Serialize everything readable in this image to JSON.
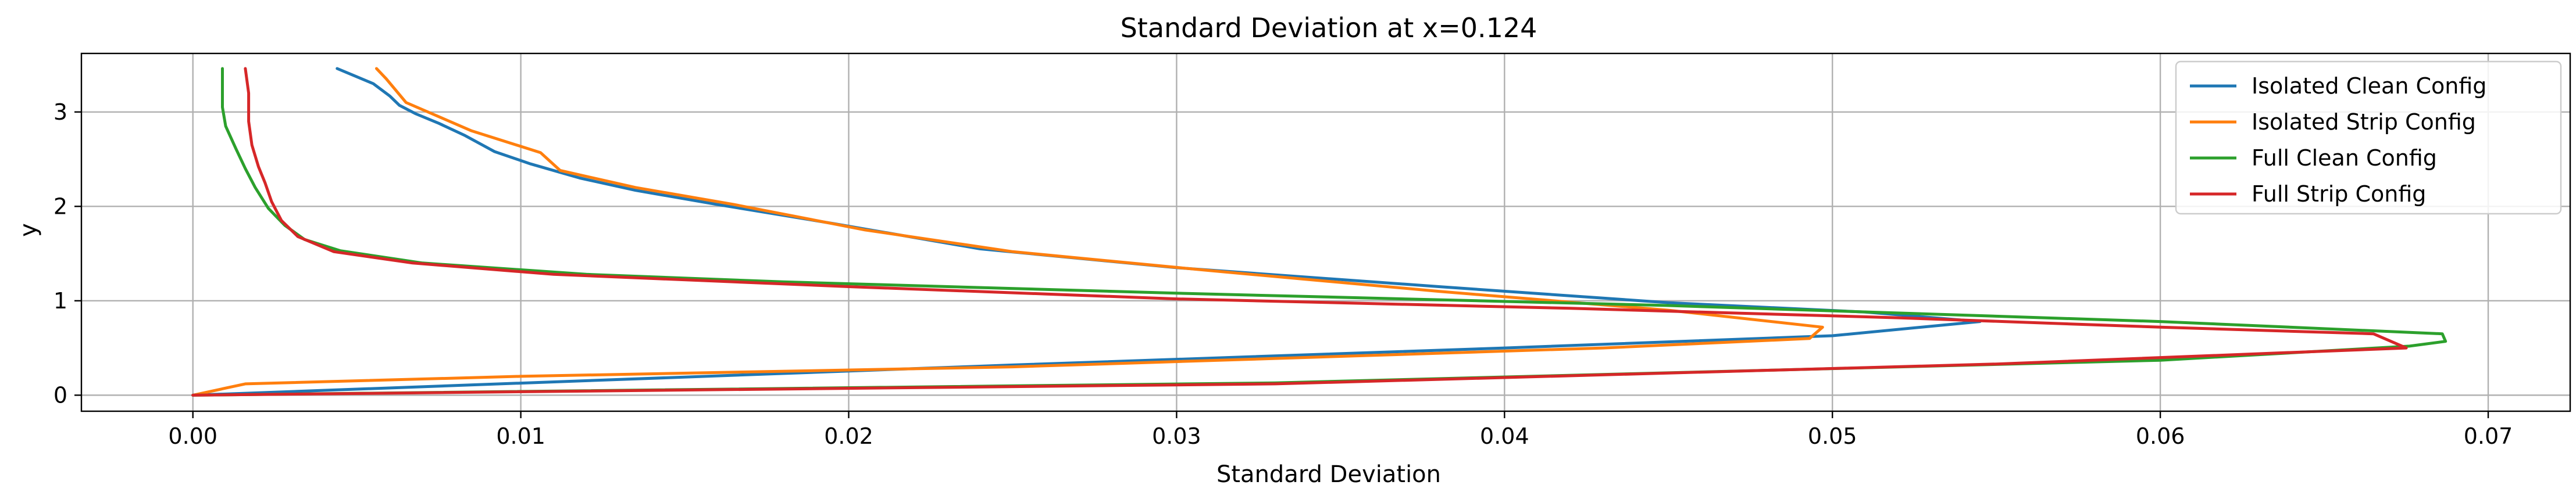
{
  "chart_data": {
    "type": "line",
    "title": "Standard Deviation at x=0.124",
    "xlabel": "Standard Deviation",
    "ylabel": "y",
    "xlim": [
      -0.0034,
      0.0725
    ],
    "ylim": [
      -0.17,
      3.62
    ],
    "xticks": [
      0.0,
      0.01,
      0.02,
      0.03,
      0.04,
      0.05,
      0.06,
      0.07
    ],
    "xtick_labels": [
      "0.00",
      "0.01",
      "0.02",
      "0.03",
      "0.04",
      "0.05",
      "0.06",
      "0.07"
    ],
    "yticks": [
      0,
      1,
      2,
      3
    ],
    "ytick_labels": [
      "0",
      "1",
      "2",
      "3"
    ],
    "grid": true,
    "legend_position": "top-right",
    "series": [
      {
        "name": "Isolated Clean Config",
        "color": "#1f77b4",
        "points": [
          [
            0.0,
            0.0
          ],
          [
            0.025,
            0.32
          ],
          [
            0.04,
            0.5
          ],
          [
            0.05,
            0.63
          ],
          [
            0.0545,
            0.78
          ],
          [
            0.051,
            0.88
          ],
          [
            0.045,
            0.98
          ],
          [
            0.038,
            1.15
          ],
          [
            0.03,
            1.35
          ],
          [
            0.024,
            1.55
          ],
          [
            0.0195,
            1.82
          ],
          [
            0.016,
            2.02
          ],
          [
            0.0135,
            2.17
          ],
          [
            0.0118,
            2.3
          ],
          [
            0.0103,
            2.45
          ],
          [
            0.0092,
            2.58
          ],
          [
            0.0083,
            2.75
          ],
          [
            0.0075,
            2.88
          ],
          [
            0.0068,
            2.98
          ],
          [
            0.0063,
            3.07
          ],
          [
            0.006,
            3.17
          ],
          [
            0.0055,
            3.3
          ],
          [
            0.0044,
            3.46
          ]
        ]
      },
      {
        "name": "Isolated Strip Config",
        "color": "#ff7f0e",
        "points": [
          [
            0.0,
            0.0
          ],
          [
            0.0016,
            0.12
          ],
          [
            0.01,
            0.2
          ],
          [
            0.025,
            0.3
          ],
          [
            0.043,
            0.5
          ],
          [
            0.0493,
            0.6
          ],
          [
            0.0497,
            0.72
          ],
          [
            0.045,
            0.9
          ],
          [
            0.038,
            1.1
          ],
          [
            0.031,
            1.32
          ],
          [
            0.025,
            1.52
          ],
          [
            0.0205,
            1.75
          ],
          [
            0.0165,
            2.02
          ],
          [
            0.0135,
            2.2
          ],
          [
            0.0112,
            2.38
          ],
          [
            0.0106,
            2.57
          ],
          [
            0.0085,
            2.8
          ],
          [
            0.0073,
            2.98
          ],
          [
            0.0065,
            3.1
          ],
          [
            0.0059,
            3.35
          ],
          [
            0.0056,
            3.46
          ]
        ]
      },
      {
        "name": "Full Clean Config",
        "color": "#2ca02c",
        "points": [
          [
            0.0,
            0.0
          ],
          [
            0.033,
            0.13
          ],
          [
            0.06,
            0.37
          ],
          [
            0.0676,
            0.52
          ],
          [
            0.0687,
            0.57
          ],
          [
            0.0686,
            0.65
          ],
          [
            0.06,
            0.78
          ],
          [
            0.045,
            0.95
          ],
          [
            0.03,
            1.08
          ],
          [
            0.018,
            1.2
          ],
          [
            0.012,
            1.28
          ],
          [
            0.007,
            1.4
          ],
          [
            0.0045,
            1.53
          ],
          [
            0.0034,
            1.65
          ],
          [
            0.0028,
            1.8
          ],
          [
            0.0023,
            1.98
          ],
          [
            0.0019,
            2.2
          ],
          [
            0.0016,
            2.4
          ],
          [
            0.0013,
            2.62
          ],
          [
            0.001,
            2.85
          ],
          [
            0.0009,
            3.05
          ],
          [
            0.0009,
            3.46
          ]
        ]
      },
      {
        "name": "Full Strip Config",
        "color": "#d62728",
        "points": [
          [
            0.0,
            0.0
          ],
          [
            0.033,
            0.12
          ],
          [
            0.055,
            0.33
          ],
          [
            0.0675,
            0.5
          ],
          [
            0.0665,
            0.65
          ],
          [
            0.06,
            0.72
          ],
          [
            0.052,
            0.82
          ],
          [
            0.042,
            0.92
          ],
          [
            0.03,
            1.02
          ],
          [
            0.02,
            1.15
          ],
          [
            0.011,
            1.28
          ],
          [
            0.0067,
            1.4
          ],
          [
            0.0043,
            1.52
          ],
          [
            0.0032,
            1.68
          ],
          [
            0.0027,
            1.85
          ],
          [
            0.0024,
            2.05
          ],
          [
            0.0022,
            2.25
          ],
          [
            0.002,
            2.42
          ],
          [
            0.0018,
            2.65
          ],
          [
            0.0017,
            2.9
          ],
          [
            0.0017,
            3.2
          ],
          [
            0.0016,
            3.46
          ]
        ]
      }
    ]
  }
}
